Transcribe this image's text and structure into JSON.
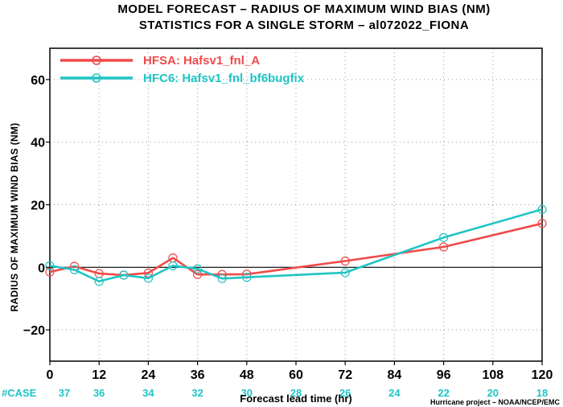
{
  "title_line1": "MODEL FORECAST – RADIUS OF MAXIMUM WIND BIAS (NM)",
  "title_line2": "STATISTICS FOR A SINGLE STORM – al072022_FIONA",
  "case_label": "#CASE",
  "credit": "Hurricane project – NOAA/NCEP/EMC",
  "chart_data": {
    "type": "line",
    "xlabel": "Forecast lead time (hr)",
    "ylabel": "RADIUS OF MAXIMUM WIND BIAS (NM)",
    "xlim": [
      0,
      120
    ],
    "ylim": [
      -30,
      70
    ],
    "xticks": [
      0,
      12,
      24,
      36,
      48,
      60,
      72,
      84,
      96,
      108,
      120
    ],
    "yticks": [
      -20,
      0,
      20,
      40,
      60
    ],
    "grid": true,
    "legend_position": "top-left",
    "case_counts": [
      37,
      36,
      34,
      32,
      30,
      28,
      26,
      24,
      22,
      20,
      18
    ],
    "series": [
      {
        "name": "HFSA: Hafsv1_fnl_A",
        "color": "#f04a4a",
        "x": [
          0,
          6,
          12,
          18,
          24,
          30,
          36,
          42,
          48,
          72,
          96,
          120
        ],
        "y": [
          -1.5,
          0.3,
          -2.0,
          -2.5,
          -1.8,
          3.0,
          -2.3,
          -2.3,
          -2.2,
          2.0,
          6.5,
          14.0
        ]
      },
      {
        "name": "HFC6: Hafsv1_fnl_bf6bugfix",
        "color": "#20c4c4",
        "x": [
          0,
          6,
          12,
          18,
          24,
          30,
          36,
          42,
          48,
          72,
          96,
          120
        ],
        "y": [
          0.5,
          -0.8,
          -4.5,
          -2.5,
          -3.5,
          0.5,
          -0.5,
          -3.6,
          -3.2,
          -1.7,
          9.5,
          18.5
        ]
      }
    ]
  }
}
